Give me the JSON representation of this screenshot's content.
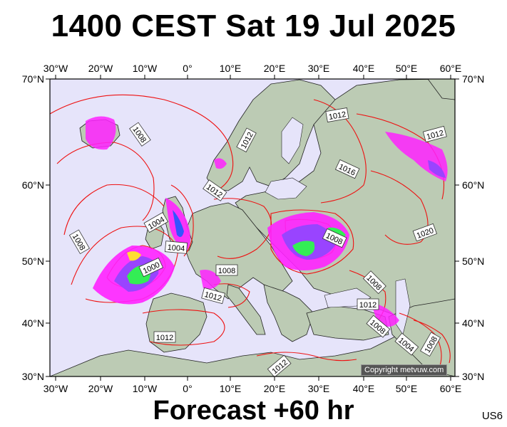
{
  "header": {
    "title": "1400 CEST Sat 19 Jul 2025"
  },
  "footer": {
    "forecast_label": "Forecast +60 hr",
    "model_code": "US6"
  },
  "copyright": "Copyright metvuw.com",
  "axes": {
    "lon_labels": [
      "30°W",
      "20°W",
      "10°W",
      "0°",
      "10°E",
      "20°E",
      "30°E",
      "40°E",
      "50°E",
      "60°E"
    ],
    "lat_labels": [
      "70°N",
      "60°N",
      "50°N",
      "40°N",
      "30°N"
    ]
  },
  "isobar_labels": [
    "1008",
    "1012",
    "1012",
    "1016",
    "1012",
    "1012",
    "1004",
    "1004",
    "1008",
    "1000",
    "1008",
    "1012",
    "1020",
    "1008",
    "1008",
    "1012",
    "1008",
    "1004",
    "1008",
    "1012",
    "1012"
  ],
  "colors": {
    "sea": "#e6e4fa",
    "land": "#bccbb4",
    "isobar": "#ee1111",
    "rain_light": "#ff22ff",
    "rain_mid": "#9944ff",
    "rain_heavy": "#33ee55"
  }
}
